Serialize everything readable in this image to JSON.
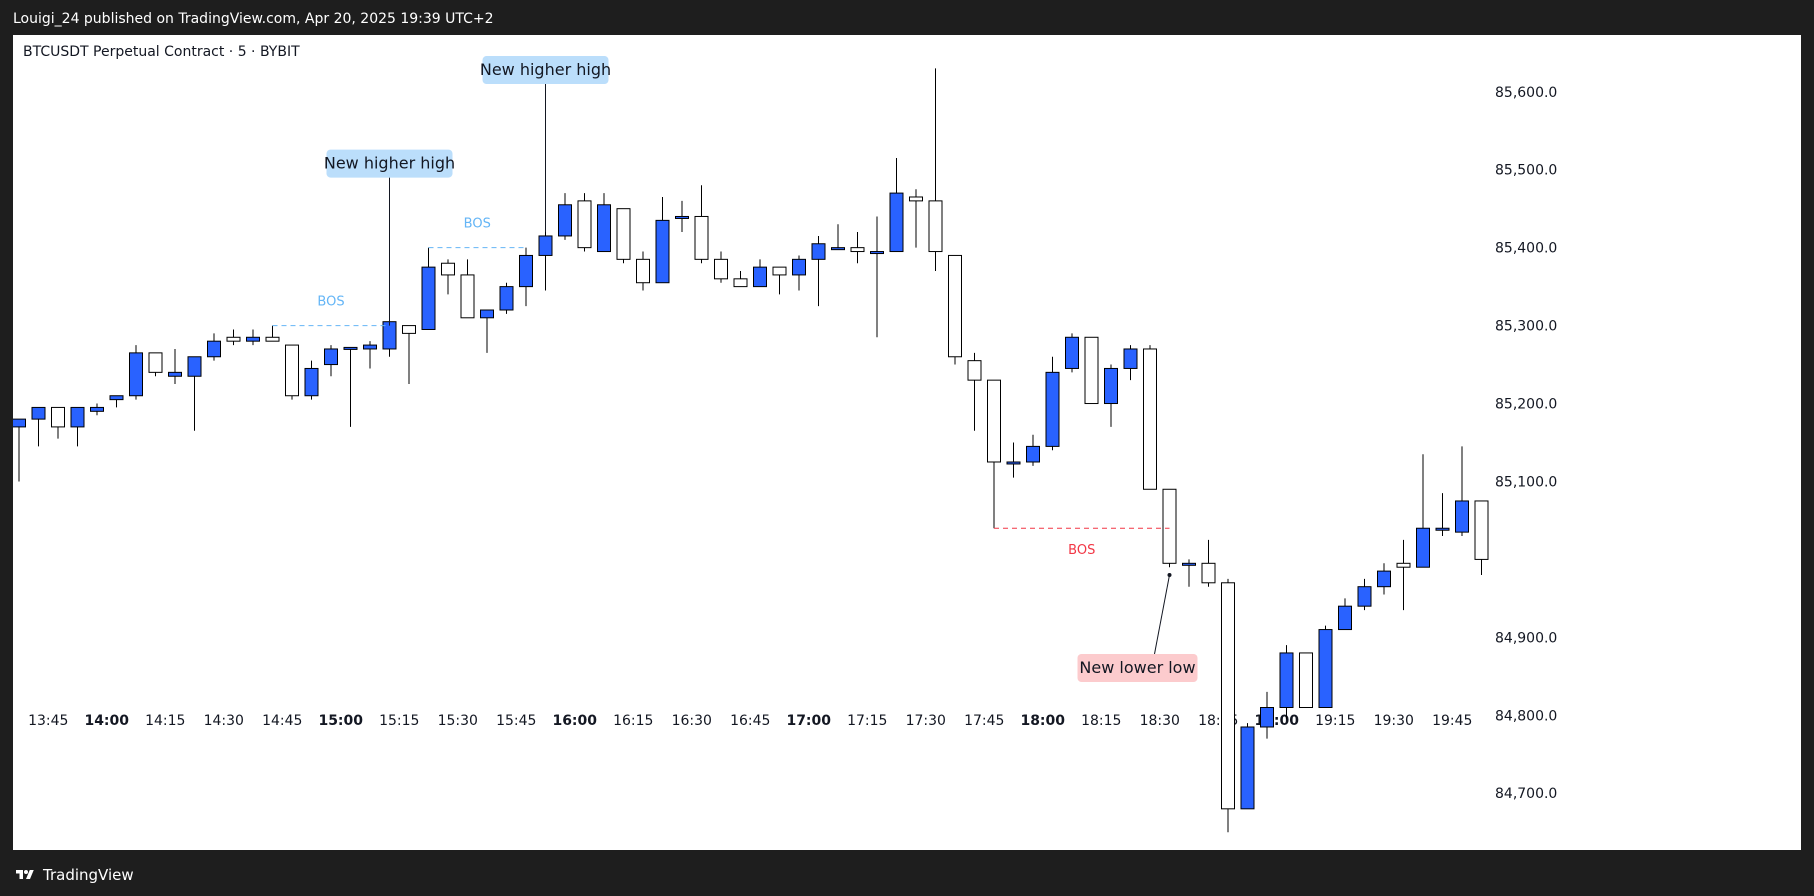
{
  "header": {
    "publisher_line": "Louigi_24 published on TradingView.com, Apr 20, 2025 19:39 UTC+2"
  },
  "chart_title": "BTCUSDT Perpetual Contract · 5 · BYBIT",
  "footer": {
    "brand": "TradingView"
  },
  "colors": {
    "bullish_fill": "#2962ff",
    "bearish_fill": "#ffffff",
    "wick": "#000000",
    "bos_bull": "#64b5f6",
    "bos_bear": "#f23645",
    "callout_bull_bg": "#bbdefb",
    "callout_bear_bg": "#fccbcd"
  },
  "chart_data": {
    "type": "candlestick",
    "symbol": "BTCUSDT Perpetual Contract",
    "interval": "5",
    "exchange": "BYBIT",
    "y_axis": {
      "position": "right",
      "ylim": [
        84640,
        85660
      ],
      "ticks": [
        {
          "value": 85600,
          "label": "85,600.0"
        },
        {
          "value": 85500,
          "label": "85,500.0"
        },
        {
          "value": 85400,
          "label": "85,400.0"
        },
        {
          "value": 85300,
          "label": "85,300.0"
        },
        {
          "value": 85200,
          "label": "85,200.0"
        },
        {
          "value": 85100,
          "label": "85,100.0"
        },
        {
          "value": 84900,
          "label": "84,900.0"
        },
        {
          "value": 84800,
          "label": "84,800.0"
        },
        {
          "value": 84700,
          "label": "84,700.0"
        }
      ]
    },
    "x_axis": {
      "ticks": [
        {
          "index": 1.5,
          "label": "13:45",
          "bold": false
        },
        {
          "index": 4.5,
          "label": "14:00",
          "bold": true
        },
        {
          "index": 7.5,
          "label": "14:15",
          "bold": false
        },
        {
          "index": 10.5,
          "label": "14:30",
          "bold": false
        },
        {
          "index": 13.5,
          "label": "14:45",
          "bold": false
        },
        {
          "index": 16.5,
          "label": "15:00",
          "bold": true
        },
        {
          "index": 19.5,
          "label": "15:15",
          "bold": false
        },
        {
          "index": 22.5,
          "label": "15:30",
          "bold": false
        },
        {
          "index": 25.5,
          "label": "15:45",
          "bold": false
        },
        {
          "index": 28.5,
          "label": "16:00",
          "bold": true
        },
        {
          "index": 31.5,
          "label": "16:15",
          "bold": false
        },
        {
          "index": 34.5,
          "label": "16:30",
          "bold": false
        },
        {
          "index": 37.5,
          "label": "16:45",
          "bold": false
        },
        {
          "index": 40.5,
          "label": "17:00",
          "bold": true
        },
        {
          "index": 43.5,
          "label": "17:15",
          "bold": false
        },
        {
          "index": 46.5,
          "label": "17:30",
          "bold": false
        },
        {
          "index": 49.5,
          "label": "17:45",
          "bold": false
        },
        {
          "index": 52.5,
          "label": "18:00",
          "bold": true
        },
        {
          "index": 55.5,
          "label": "18:15",
          "bold": false
        },
        {
          "index": 58.5,
          "label": "18:30",
          "bold": false
        },
        {
          "index": 61.5,
          "label": "18:45",
          "bold": false
        },
        {
          "index": 64.5,
          "label": "19:00",
          "bold": true
        },
        {
          "index": 67.5,
          "label": "19:15",
          "bold": false
        },
        {
          "index": 70.5,
          "label": "19:30",
          "bold": false
        },
        {
          "index": 73.5,
          "label": "19:45",
          "bold": false
        }
      ]
    },
    "candles": [
      {
        "o": 85170,
        "h": 85180,
        "l": 85100,
        "c": 85180
      },
      {
        "o": 85180,
        "h": 85195,
        "l": 85145,
        "c": 85195
      },
      {
        "o": 85195,
        "h": 85195,
        "l": 85155,
        "c": 85170
      },
      {
        "o": 85170,
        "h": 85195,
        "l": 85145,
        "c": 85195
      },
      {
        "o": 85190,
        "h": 85200,
        "l": 85185,
        "c": 85195
      },
      {
        "o": 85205,
        "h": 85210,
        "l": 85195,
        "c": 85210
      },
      {
        "o": 85210,
        "h": 85275,
        "l": 85205,
        "c": 85265
      },
      {
        "o": 85265,
        "h": 85265,
        "l": 85235,
        "c": 85240
      },
      {
        "o": 85235,
        "h": 85270,
        "l": 85225,
        "c": 85240
      },
      {
        "o": 85235,
        "h": 85260,
        "l": 85165,
        "c": 85260
      },
      {
        "o": 85260,
        "h": 85290,
        "l": 85255,
        "c": 85280
      },
      {
        "o": 85285,
        "h": 85295,
        "l": 85275,
        "c": 85280
      },
      {
        "o": 85280,
        "h": 85295,
        "l": 85275,
        "c": 85285
      },
      {
        "o": 85285,
        "h": 85300,
        "l": 85280,
        "c": 85280
      },
      {
        "o": 85275,
        "h": 85275,
        "l": 85205,
        "c": 85210
      },
      {
        "o": 85210,
        "h": 85255,
        "l": 85205,
        "c": 85245
      },
      {
        "o": 85250,
        "h": 85275,
        "l": 85235,
        "c": 85270
      },
      {
        "o": 85270,
        "h": 85270,
        "l": 85170,
        "c": 85272
      },
      {
        "o": 85270,
        "h": 85280,
        "l": 85245,
        "c": 85275
      },
      {
        "o": 85270,
        "h": 85305,
        "l": 85260,
        "c": 85305
      },
      {
        "o": 85300,
        "h": 85300,
        "l": 85225,
        "c": 85290
      },
      {
        "o": 85295,
        "h": 85400,
        "l": 85295,
        "c": 85375
      },
      {
        "o": 85380,
        "h": 85385,
        "l": 85340,
        "c": 85365
      },
      {
        "o": 85365,
        "h": 85385,
        "l": 85310,
        "c": 85310
      },
      {
        "o": 85310,
        "h": 85320,
        "l": 85265,
        "c": 85320
      },
      {
        "o": 85320,
        "h": 85355,
        "l": 85315,
        "c": 85350
      },
      {
        "o": 85350,
        "h": 85400,
        "l": 85325,
        "c": 85390
      },
      {
        "o": 85390,
        "h": 85425,
        "l": 85345,
        "c": 85415
      },
      {
        "o": 85415,
        "h": 85470,
        "l": 85410,
        "c": 85455
      },
      {
        "o": 85460,
        "h": 85470,
        "l": 85395,
        "c": 85400
      },
      {
        "o": 85395,
        "h": 85470,
        "l": 85395,
        "c": 85455
      },
      {
        "o": 85450,
        "h": 85450,
        "l": 85380,
        "c": 85385
      },
      {
        "o": 85385,
        "h": 85395,
        "l": 85345,
        "c": 85355
      },
      {
        "o": 85355,
        "h": 85465,
        "l": 85355,
        "c": 85435
      },
      {
        "o": 85440,
        "h": 85460,
        "l": 85420,
        "c": 85440
      },
      {
        "o": 85440,
        "h": 85480,
        "l": 85380,
        "c": 85385
      },
      {
        "o": 85385,
        "h": 85395,
        "l": 85355,
        "c": 85360
      },
      {
        "o": 85360,
        "h": 85370,
        "l": 85350,
        "c": 85350
      },
      {
        "o": 85350,
        "h": 85385,
        "l": 85350,
        "c": 85375
      },
      {
        "o": 85375,
        "h": 85375,
        "l": 85340,
        "c": 85365
      },
      {
        "o": 85365,
        "h": 85390,
        "l": 85345,
        "c": 85385
      },
      {
        "o": 85385,
        "h": 85415,
        "l": 85325,
        "c": 85405
      },
      {
        "o": 85400,
        "h": 85430,
        "l": 85400,
        "c": 85400
      },
      {
        "o": 85400,
        "h": 85420,
        "l": 85380,
        "c": 85395
      },
      {
        "o": 85395,
        "h": 85440,
        "l": 85285,
        "c": 85395
      },
      {
        "o": 85395,
        "h": 85515,
        "l": 85395,
        "c": 85470
      },
      {
        "o": 85465,
        "h": 85475,
        "l": 85400,
        "c": 85460
      },
      {
        "o": 85460,
        "h": 85630,
        "l": 85370,
        "c": 85395
      },
      {
        "o": 85390,
        "h": 85390,
        "l": 85250,
        "c": 85260
      },
      {
        "o": 85255,
        "h": 85265,
        "l": 85165,
        "c": 85230
      },
      {
        "o": 85230,
        "h": 85230,
        "l": 85040,
        "c": 85125
      },
      {
        "o": 85125,
        "h": 85150,
        "l": 85105,
        "c": 85125
      },
      {
        "o": 85125,
        "h": 85160,
        "l": 85120,
        "c": 85145
      },
      {
        "o": 85145,
        "h": 85260,
        "l": 85140,
        "c": 85240
      },
      {
        "o": 85245,
        "h": 85290,
        "l": 85240,
        "c": 85285
      },
      {
        "o": 85285,
        "h": 85285,
        "l": 85200,
        "c": 85200
      },
      {
        "o": 85200,
        "h": 85250,
        "l": 85170,
        "c": 85245
      },
      {
        "o": 85245,
        "h": 85275,
        "l": 85230,
        "c": 85270
      },
      {
        "o": 85270,
        "h": 85275,
        "l": 85090,
        "c": 85090
      },
      {
        "o": 85090,
        "h": 85090,
        "l": 84990,
        "c": 84995
      },
      {
        "o": 84995,
        "h": 85000,
        "l": 84965,
        "c": 84995
      },
      {
        "o": 84995,
        "h": 85025,
        "l": 84965,
        "c": 84970
      },
      {
        "o": 84970,
        "h": 84975,
        "l": 84650,
        "c": 84680
      },
      {
        "o": 84680,
        "h": 84790,
        "l": 84680,
        "c": 84785
      },
      {
        "o": 84785,
        "h": 84830,
        "l": 84770,
        "c": 84810
      },
      {
        "o": 84810,
        "h": 84890,
        "l": 84795,
        "c": 84880
      },
      {
        "o": 84880,
        "h": 84880,
        "l": 84810,
        "c": 84810
      },
      {
        "o": 84810,
        "h": 84915,
        "l": 84810,
        "c": 84910
      },
      {
        "o": 84910,
        "h": 84950,
        "l": 84910,
        "c": 84940
      },
      {
        "o": 84940,
        "h": 84975,
        "l": 84935,
        "c": 84965
      },
      {
        "o": 84965,
        "h": 84995,
        "l": 84955,
        "c": 84985
      },
      {
        "o": 84995,
        "h": 85025,
        "l": 84935,
        "c": 84990
      },
      {
        "o": 84990,
        "h": 85135,
        "l": 84990,
        "c": 85040
      },
      {
        "o": 85040,
        "h": 85085,
        "l": 85030,
        "c": 85040
      },
      {
        "o": 85035,
        "h": 85145,
        "l": 85030,
        "c": 85075
      },
      {
        "o": 85075,
        "h": 85075,
        "l": 84980,
        "c": 85000
      }
    ],
    "annotations": [
      {
        "kind": "bos_line",
        "direction": "bull",
        "start_index": 13,
        "end_index": 19,
        "price": 85300,
        "label": "BOS"
      },
      {
        "kind": "bos_line",
        "direction": "bull",
        "start_index": 21,
        "end_index": 26,
        "price": 85400,
        "label": "BOS"
      },
      {
        "kind": "bos_line",
        "direction": "bear",
        "start_index": 50,
        "end_index": 59,
        "price": 85040,
        "label": "BOS"
      },
      {
        "kind": "callout",
        "direction": "bull",
        "text": "New higher high",
        "anchor_index": 19,
        "anchor_price": 85300
      },
      {
        "kind": "callout",
        "direction": "bull",
        "text": "New higher high",
        "anchor_index": 27,
        "anchor_price": 85420
      },
      {
        "kind": "callout",
        "direction": "bear",
        "text": "New lower low",
        "anchor_index": 59,
        "anchor_price": 84980
      }
    ]
  }
}
